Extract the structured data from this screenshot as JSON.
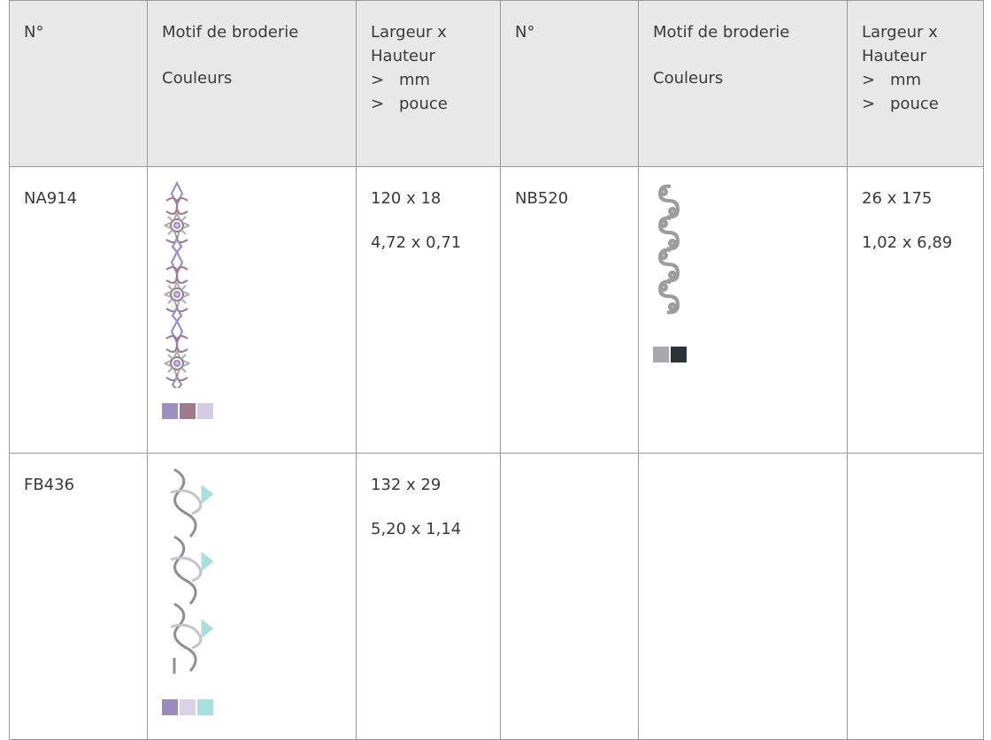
{
  "table": {
    "header": [
      {
        "lines": [
          "N°"
        ]
      },
      {
        "lines": [
          "Motif de broderie",
          "Couleurs"
        ]
      },
      {
        "lines": [
          "Largeur x",
          "Hauteur"
        ],
        "units": [
          {
            "marker": ">",
            "text": "mm"
          },
          {
            "marker": ">",
            "text": "pouce"
          }
        ]
      },
      {
        "lines": [
          "N°"
        ]
      },
      {
        "lines": [
          "Motif de broderie",
          "Couleurs"
        ]
      },
      {
        "lines": [
          "Largeur x",
          "Hauteur"
        ],
        "units": [
          {
            "marker": ">",
            "text": "mm"
          },
          {
            "marker": ">",
            "text": "pouce"
          }
        ]
      }
    ],
    "rows": [
      {
        "cells": [
          {
            "number": "NA914",
            "colors": [
              "#9d8fc0",
              "#9c7a8f",
              "#d5cce4"
            ],
            "mm": "120 x 18",
            "inch": "4,72 x 0,71"
          },
          {
            "number": "NB520",
            "colors": [
              "#a9a9ad",
              "#2c3338"
            ],
            "mm": "26 x 175",
            "inch": "1,02 x 6,89"
          }
        ]
      },
      {
        "cells": [
          {
            "number": "FB436",
            "colors": [
              "#9a8ac0",
              "#d8d1e7",
              "#a8dedd"
            ],
            "mm": "132 x 29",
            "inch": "5,20 x 1,14"
          }
        ]
      }
    ]
  }
}
